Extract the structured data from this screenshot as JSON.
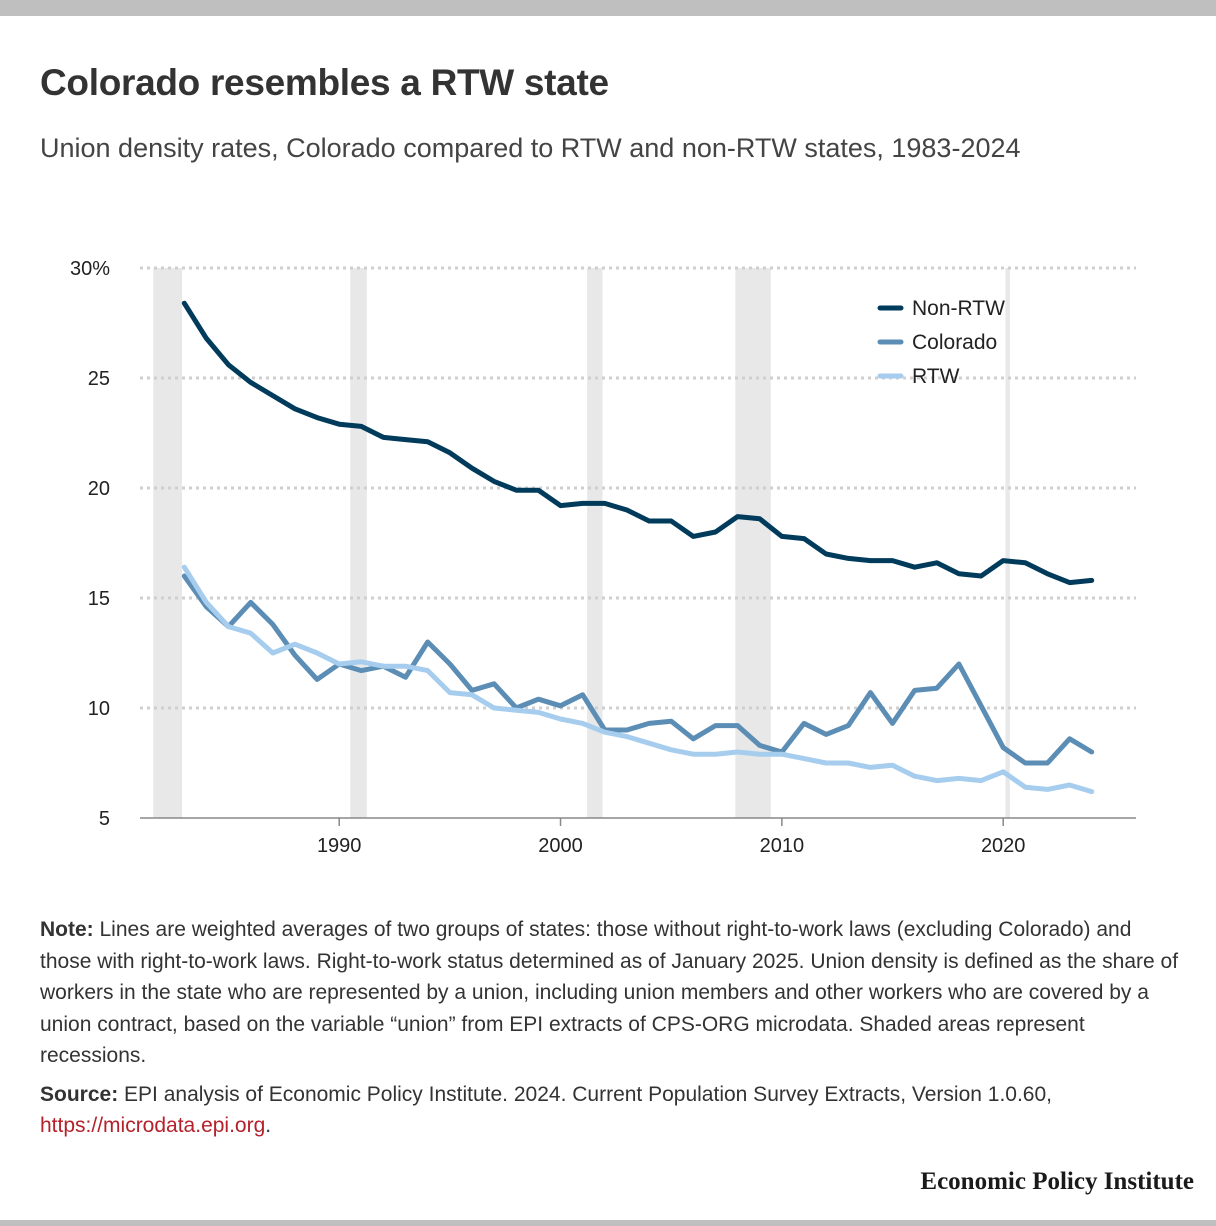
{
  "header": {
    "title": "Colorado resembles a RTW state",
    "subtitle": "Union density rates, Colorado compared to RTW and non-RTW states, 1983-2024"
  },
  "chart_data": {
    "type": "line",
    "x": [
      1983,
      1984,
      1985,
      1986,
      1987,
      1988,
      1989,
      1990,
      1991,
      1992,
      1993,
      1994,
      1995,
      1996,
      1997,
      1998,
      1999,
      2000,
      2001,
      2002,
      2003,
      2004,
      2005,
      2006,
      2007,
      2008,
      2009,
      2010,
      2011,
      2012,
      2013,
      2014,
      2015,
      2016,
      2017,
      2018,
      2019,
      2020,
      2021,
      2022,
      2023,
      2024
    ],
    "series": [
      {
        "name": "Non-RTW",
        "color": "#003b5c",
        "values": [
          28.4,
          26.8,
          25.6,
          24.8,
          24.2,
          23.6,
          23.2,
          22.9,
          22.8,
          22.3,
          22.2,
          22.1,
          21.6,
          20.9,
          20.3,
          19.9,
          19.9,
          19.2,
          19.3,
          19.3,
          19.0,
          18.5,
          18.5,
          17.8,
          18.0,
          18.7,
          18.6,
          17.8,
          17.7,
          17.0,
          16.8,
          16.7,
          16.7,
          16.4,
          16.6,
          16.1,
          16.0,
          16.7,
          16.6,
          16.1,
          15.7,
          15.8
        ]
      },
      {
        "name": "Colorado",
        "color": "#5b8db5",
        "values": [
          16.0,
          14.6,
          13.7,
          14.8,
          13.8,
          12.4,
          11.3,
          12.0,
          11.7,
          11.9,
          11.4,
          13.0,
          12.0,
          10.8,
          11.1,
          10.0,
          10.4,
          10.1,
          10.6,
          9.0,
          9.0,
          9.3,
          9.4,
          8.6,
          9.2,
          9.2,
          8.3,
          8.0,
          9.3,
          8.8,
          9.2,
          10.7,
          9.3,
          10.8,
          10.9,
          12.0,
          10.1,
          8.2,
          7.5,
          7.5,
          8.6,
          8.0
        ]
      },
      {
        "name": "RTW",
        "color": "#a6cdee",
        "values": [
          16.4,
          14.8,
          13.7,
          13.4,
          12.5,
          12.9,
          12.5,
          12.0,
          12.1,
          11.9,
          11.9,
          11.7,
          10.7,
          10.6,
          10.0,
          9.9,
          9.8,
          9.5,
          9.3,
          8.9,
          8.7,
          8.4,
          8.1,
          7.9,
          7.9,
          8.0,
          7.9,
          7.9,
          7.7,
          7.5,
          7.5,
          7.3,
          7.4,
          6.9,
          6.7,
          6.8,
          6.7,
          7.1,
          6.4,
          6.3,
          6.5,
          6.2
        ]
      }
    ],
    "recessions": [
      [
        1981.6,
        1982.9
      ],
      [
        1990.5,
        1991.25
      ],
      [
        2001.2,
        2001.9
      ],
      [
        2007.9,
        2009.5
      ],
      [
        2020.1,
        2020.3
      ]
    ],
    "xlim": [
      1981,
      2026
    ],
    "ylim": [
      5,
      30
    ],
    "yticks": [
      "30%",
      "25",
      "20",
      "15",
      "10",
      "5"
    ],
    "ytick_values": [
      30,
      25,
      20,
      15,
      10,
      5
    ],
    "xticks": [
      "1990",
      "2000",
      "2010",
      "2020"
    ],
    "xtick_values": [
      1990,
      2000,
      2010,
      2020
    ],
    "legend_position": "top-right",
    "grid": "horizontal-dotted"
  },
  "notes": {
    "note_label": "Note:",
    "note_text": " Lines are weighted averages of two groups of states: those without right-to-work laws (excluding Colorado) and those with right-to-work laws. Right-to-work status determined as of January 2025. Union density is defined as the share of workers in the state who are represented by a union, including union members and other workers who are covered by a union contract, based on the variable “union” from EPI extracts of CPS-ORG microdata. Shaded areas represent recessions.",
    "source_label": "Source:",
    "source_text": " EPI analysis of Economic Policy Institute. 2024. Current Population Survey Extracts, Version 1.0.60, ",
    "source_link": "https://microdata.epi.org",
    "source_end": "."
  },
  "branding": {
    "name": "Economic Policy Institute"
  },
  "colors": {
    "background": "#ffffff",
    "frame": "#bfbfbf",
    "link": "#b5212b",
    "recession": "#e8e8e8"
  }
}
